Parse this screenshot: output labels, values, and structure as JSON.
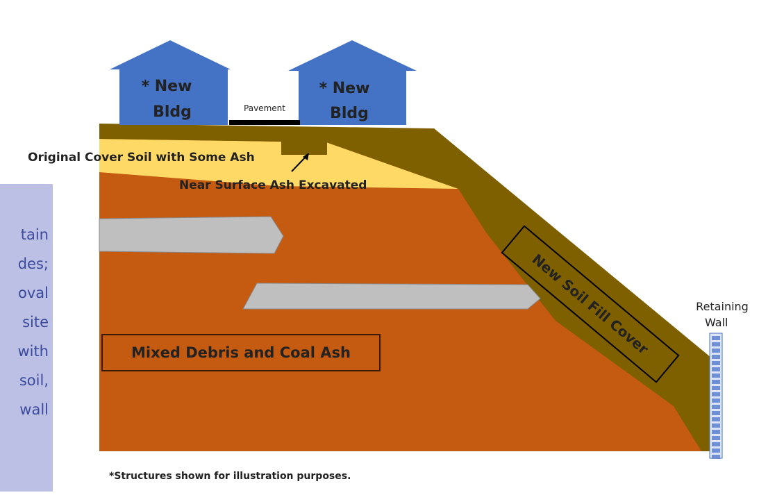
{
  "side_text": {
    "lines": [
      "tain",
      "des;",
      "oval",
      "site",
      "with",
      "soil,",
      "wall"
    ]
  },
  "diagram": {
    "buildings": [
      {
        "line1": "* New",
        "line2": "Bldg"
      },
      {
        "line1": "* New",
        "line2": "Bldg"
      }
    ],
    "pavement": "Pavement",
    "cover_soil": "Original Cover Soil with Some Ash",
    "excavated": "Near Surface Ash Excavated",
    "fill_cover": "New Soil Fill Cover",
    "debris": "Mixed Debris and Coal Ash",
    "retaining_wall": {
      "line1": "Retaining",
      "line2": "Wall"
    },
    "footnote": "*Structures shown for illustration purposes."
  }
}
